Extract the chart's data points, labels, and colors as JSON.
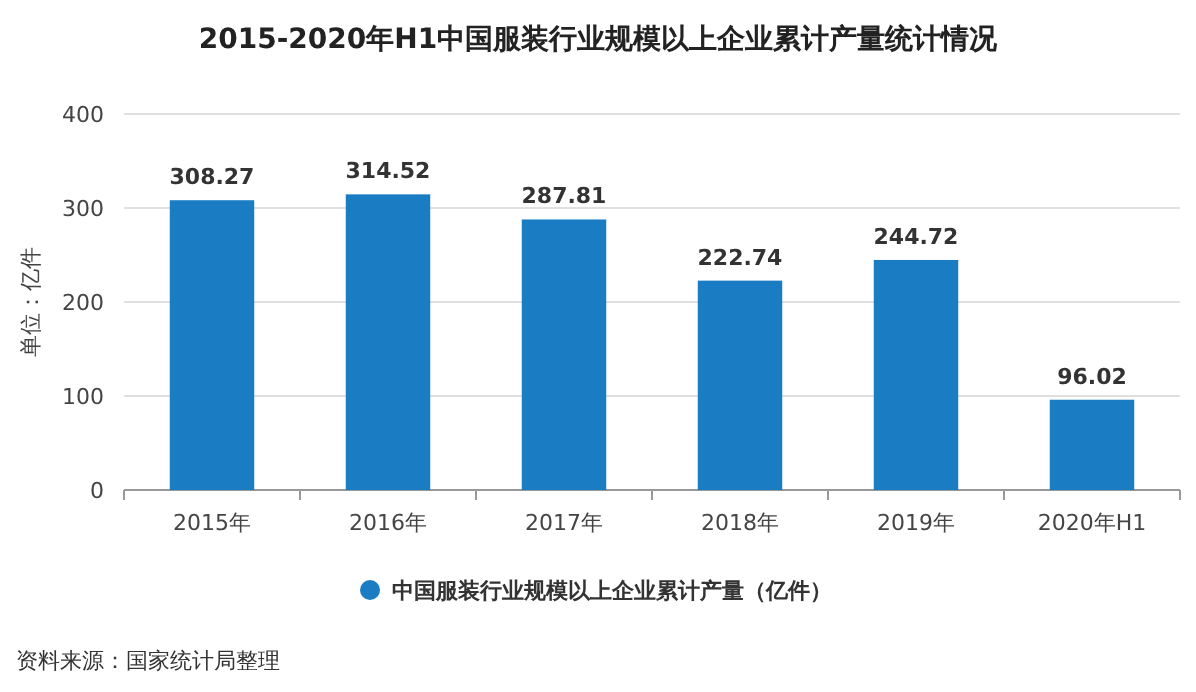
{
  "chart_data": {
    "type": "bar",
    "title": "2015-2020年H1中国服装行业规模以上企业累计产量统计情况",
    "ylabel": "单位：亿件",
    "categories": [
      "2015年",
      "2016年",
      "2017年",
      "2018年",
      "2019年",
      "2020年H1"
    ],
    "series": [
      {
        "name": "中国服装行业规模以上企业累计产量（亿件）",
        "color": "#1a7dc4",
        "values": [
          308.27,
          314.52,
          287.81,
          222.74,
          244.72,
          96.02
        ]
      }
    ],
    "ylim": [
      0,
      400
    ],
    "yticks": [
      0,
      100,
      200,
      300,
      400
    ],
    "grid": "y",
    "legend": "bottom",
    "data_labels": true,
    "annotations": [
      "资料来源：国家统计局整理"
    ]
  }
}
